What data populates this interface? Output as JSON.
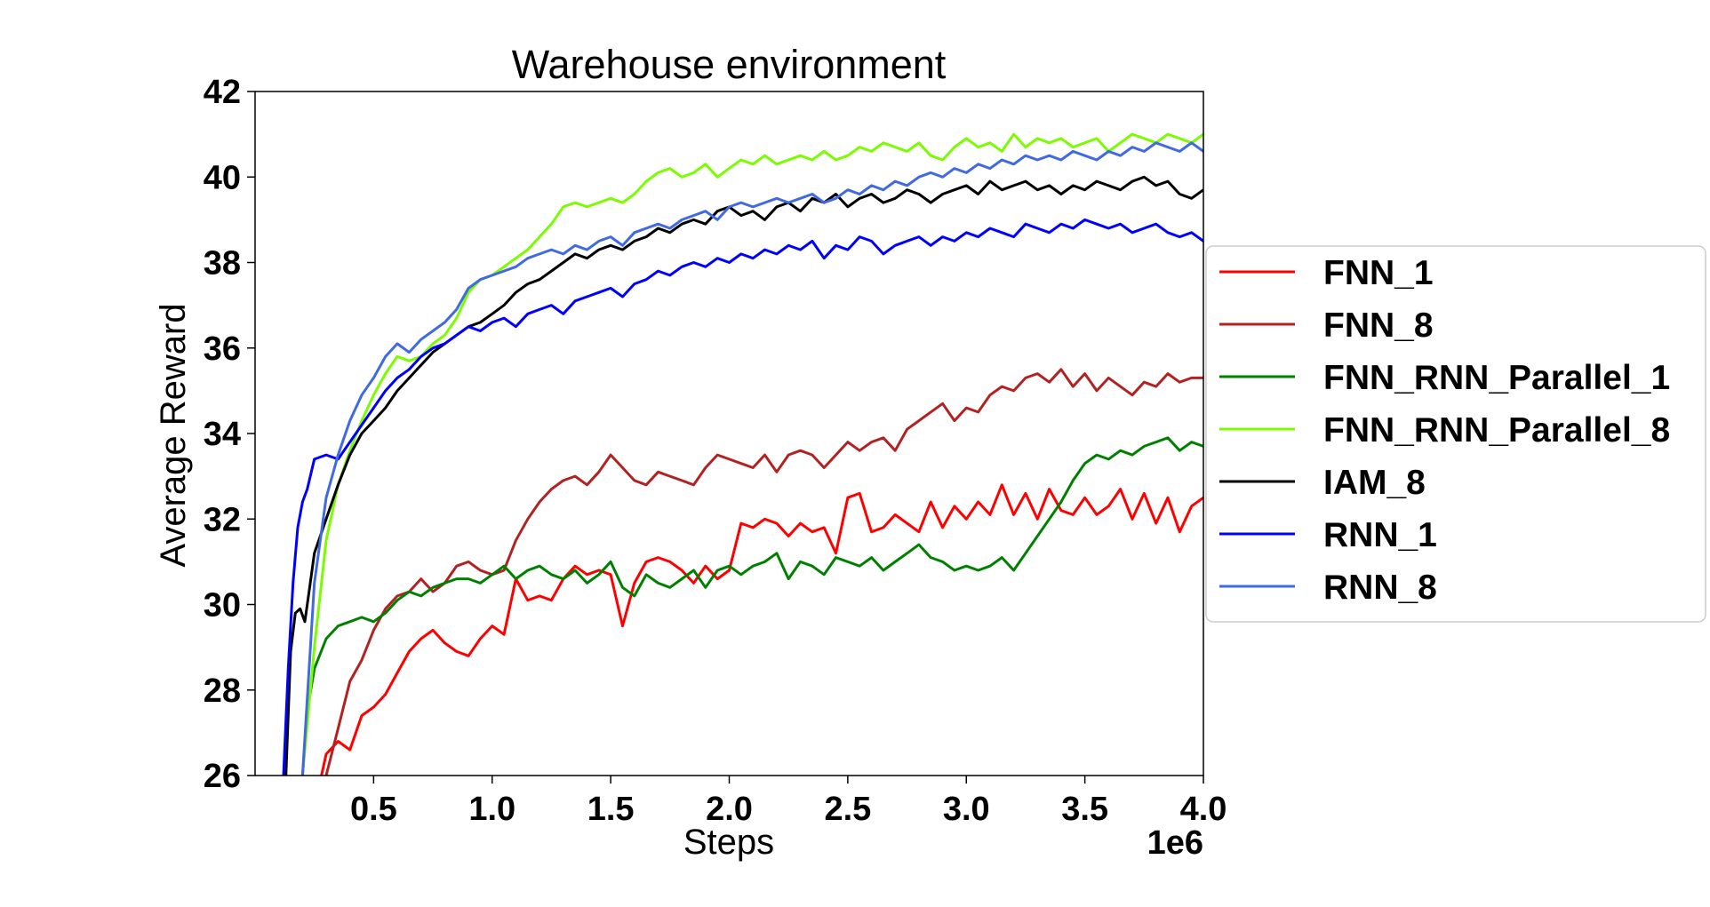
{
  "chart_data": {
    "type": "line",
    "title": "Warehouse environment",
    "xlabel": "Steps",
    "ylabel": "Average Reward",
    "x_offset_label": "1e6",
    "xlim": [
      0.0,
      4.0
    ],
    "ylim": [
      26,
      42
    ],
    "xticks": [
      0.5,
      1.0,
      1.5,
      2.0,
      2.5,
      3.0,
      3.5,
      4.0
    ],
    "xtick_labels": [
      "0.5",
      "1.0",
      "1.5",
      "2.0",
      "2.5",
      "3.0",
      "3.5",
      "4.0"
    ],
    "yticks": [
      26,
      28,
      30,
      32,
      34,
      36,
      38,
      40,
      42
    ],
    "ytick_labels": [
      "26",
      "28",
      "30",
      "32",
      "34",
      "36",
      "38",
      "40",
      "42"
    ],
    "grid": false,
    "legend_position": "outside-right",
    "series": [
      {
        "name": "FNN_1",
        "color": "#ff0000",
        "x": [
          0.28,
          0.3,
          0.35,
          0.4,
          0.45,
          0.5,
          0.55,
          0.6,
          0.65,
          0.7,
          0.75,
          0.8,
          0.85,
          0.9,
          0.95,
          1.0,
          1.05,
          1.1,
          1.15,
          1.2,
          1.25,
          1.3,
          1.35,
          1.4,
          1.45,
          1.5,
          1.55,
          1.6,
          1.65,
          1.7,
          1.75,
          1.8,
          1.85,
          1.9,
          1.95,
          2.0,
          2.05,
          2.1,
          2.15,
          2.2,
          2.25,
          2.3,
          2.35,
          2.4,
          2.45,
          2.5,
          2.55,
          2.6,
          2.65,
          2.7,
          2.75,
          2.8,
          2.85,
          2.9,
          2.95,
          3.0,
          3.05,
          3.1,
          3.15,
          3.2,
          3.25,
          3.3,
          3.35,
          3.4,
          3.45,
          3.5,
          3.55,
          3.6,
          3.65,
          3.7,
          3.75,
          3.8,
          3.85,
          3.9,
          3.95,
          4.0
        ],
        "y": [
          26.0,
          26.5,
          26.8,
          26.6,
          27.4,
          27.6,
          27.9,
          28.4,
          28.9,
          29.2,
          29.4,
          29.1,
          28.9,
          28.8,
          29.2,
          29.5,
          29.3,
          30.6,
          30.1,
          30.2,
          30.1,
          30.6,
          30.9,
          30.7,
          30.8,
          30.7,
          29.5,
          30.5,
          31.0,
          31.1,
          31.0,
          30.8,
          30.5,
          30.9,
          30.6,
          30.8,
          31.9,
          31.8,
          32.0,
          31.9,
          31.6,
          31.9,
          31.7,
          31.8,
          31.2,
          32.5,
          32.6,
          31.7,
          31.8,
          32.1,
          31.9,
          31.7,
          32.4,
          31.8,
          32.3,
          32.0,
          32.4,
          32.1,
          32.8,
          32.1,
          32.6,
          32.0,
          32.7,
          32.2,
          32.1,
          32.5,
          32.1,
          32.3,
          32.7,
          32.0,
          32.6,
          31.9,
          32.5,
          31.7,
          32.3,
          32.5
        ]
      },
      {
        "name": "FNN_8",
        "color": "#b22222",
        "x": [
          0.3,
          0.35,
          0.4,
          0.45,
          0.5,
          0.55,
          0.6,
          0.65,
          0.7,
          0.75,
          0.8,
          0.85,
          0.9,
          0.95,
          1.0,
          1.05,
          1.1,
          1.15,
          1.2,
          1.25,
          1.3,
          1.35,
          1.4,
          1.45,
          1.5,
          1.55,
          1.6,
          1.65,
          1.7,
          1.75,
          1.8,
          1.85,
          1.9,
          1.95,
          2.0,
          2.05,
          2.1,
          2.15,
          2.2,
          2.25,
          2.3,
          2.35,
          2.4,
          2.45,
          2.5,
          2.55,
          2.6,
          2.65,
          2.7,
          2.75,
          2.8,
          2.85,
          2.9,
          2.95,
          3.0,
          3.05,
          3.1,
          3.15,
          3.2,
          3.25,
          3.3,
          3.35,
          3.4,
          3.45,
          3.5,
          3.55,
          3.6,
          3.65,
          3.7,
          3.75,
          3.8,
          3.85,
          3.9,
          3.95,
          4.0
        ],
        "y": [
          26.0,
          27.1,
          28.2,
          28.7,
          29.4,
          29.9,
          30.2,
          30.3,
          30.6,
          30.3,
          30.5,
          30.9,
          31.0,
          30.8,
          30.7,
          30.8,
          31.5,
          32.0,
          32.4,
          32.7,
          32.9,
          33.0,
          32.8,
          33.1,
          33.5,
          33.2,
          32.9,
          32.8,
          33.1,
          33.0,
          32.9,
          32.8,
          33.2,
          33.5,
          33.4,
          33.3,
          33.2,
          33.5,
          33.1,
          33.5,
          33.6,
          33.5,
          33.2,
          33.5,
          33.8,
          33.6,
          33.8,
          33.9,
          33.6,
          34.1,
          34.3,
          34.5,
          34.7,
          34.3,
          34.6,
          34.5,
          34.9,
          35.1,
          35.0,
          35.3,
          35.4,
          35.2,
          35.5,
          35.1,
          35.4,
          35.0,
          35.3,
          35.1,
          34.9,
          35.2,
          35.1,
          35.4,
          35.2,
          35.3,
          35.3
        ]
      },
      {
        "name": "FNN_RNN_Parallel_1",
        "color": "#008000",
        "x": [
          0.2,
          0.22,
          0.25,
          0.3,
          0.35,
          0.4,
          0.45,
          0.5,
          0.55,
          0.6,
          0.65,
          0.7,
          0.75,
          0.8,
          0.85,
          0.9,
          0.95,
          1.0,
          1.05,
          1.1,
          1.15,
          1.2,
          1.25,
          1.3,
          1.35,
          1.4,
          1.45,
          1.5,
          1.55,
          1.6,
          1.65,
          1.7,
          1.75,
          1.8,
          1.85,
          1.9,
          1.95,
          2.0,
          2.05,
          2.1,
          2.15,
          2.2,
          2.25,
          2.3,
          2.35,
          2.4,
          2.45,
          2.5,
          2.55,
          2.6,
          2.65,
          2.7,
          2.75,
          2.8,
          2.85,
          2.9,
          2.95,
          3.0,
          3.05,
          3.1,
          3.15,
          3.2,
          3.25,
          3.3,
          3.35,
          3.4,
          3.45,
          3.5,
          3.55,
          3.6,
          3.65,
          3.7,
          3.75,
          3.8,
          3.85,
          3.9,
          3.95,
          4.0
        ],
        "y": [
          26.0,
          27.5,
          28.5,
          29.2,
          29.5,
          29.6,
          29.7,
          29.6,
          29.8,
          30.1,
          30.3,
          30.2,
          30.4,
          30.5,
          30.6,
          30.6,
          30.5,
          30.7,
          30.9,
          30.6,
          30.8,
          30.9,
          30.7,
          30.6,
          30.8,
          30.5,
          30.7,
          31.0,
          30.4,
          30.2,
          30.7,
          30.5,
          30.4,
          30.6,
          30.8,
          30.4,
          30.8,
          30.9,
          30.7,
          30.9,
          31.0,
          31.2,
          30.6,
          31.0,
          30.9,
          30.7,
          31.1,
          31.0,
          30.9,
          31.1,
          30.8,
          31.0,
          31.2,
          31.4,
          31.1,
          31.0,
          30.8,
          30.9,
          30.8,
          30.9,
          31.1,
          30.8,
          31.2,
          31.6,
          32.0,
          32.4,
          32.9,
          33.3,
          33.5,
          33.4,
          33.6,
          33.5,
          33.7,
          33.8,
          33.9,
          33.6,
          33.8,
          33.7
        ]
      },
      {
        "name": "FNN_RNN_Parallel_8",
        "color": "#7cfc00",
        "x": [
          0.2,
          0.25,
          0.3,
          0.35,
          0.4,
          0.45,
          0.5,
          0.55,
          0.6,
          0.65,
          0.7,
          0.75,
          0.8,
          0.85,
          0.9,
          0.95,
          1.0,
          1.05,
          1.1,
          1.15,
          1.2,
          1.25,
          1.3,
          1.35,
          1.4,
          1.45,
          1.5,
          1.55,
          1.6,
          1.65,
          1.7,
          1.75,
          1.8,
          1.85,
          1.9,
          1.95,
          2.0,
          2.05,
          2.1,
          2.15,
          2.2,
          2.25,
          2.3,
          2.35,
          2.4,
          2.45,
          2.5,
          2.55,
          2.6,
          2.65,
          2.7,
          2.75,
          2.8,
          2.85,
          2.9,
          2.95,
          3.0,
          3.05,
          3.1,
          3.15,
          3.2,
          3.25,
          3.3,
          3.35,
          3.4,
          3.45,
          3.5,
          3.55,
          3.6,
          3.65,
          3.7,
          3.75,
          3.8,
          3.85,
          3.9,
          3.95,
          4.0
        ],
        "y": [
          26.0,
          29.0,
          31.5,
          32.8,
          33.6,
          34.3,
          34.9,
          35.4,
          35.8,
          35.7,
          35.8,
          36.1,
          36.3,
          36.7,
          37.3,
          37.6,
          37.7,
          37.9,
          38.1,
          38.3,
          38.6,
          38.9,
          39.3,
          39.4,
          39.3,
          39.4,
          39.5,
          39.4,
          39.6,
          39.9,
          40.1,
          40.2,
          40.0,
          40.1,
          40.3,
          40.0,
          40.2,
          40.4,
          40.3,
          40.5,
          40.3,
          40.4,
          40.5,
          40.4,
          40.6,
          40.4,
          40.5,
          40.7,
          40.6,
          40.8,
          40.7,
          40.6,
          40.8,
          40.5,
          40.4,
          40.7,
          40.9,
          40.7,
          40.8,
          40.6,
          41.0,
          40.7,
          40.9,
          40.8,
          40.9,
          40.7,
          40.8,
          40.9,
          40.6,
          40.8,
          41.0,
          40.9,
          40.8,
          41.0,
          40.9,
          40.8,
          41.0
        ]
      },
      {
        "name": "IAM_8",
        "color": "#000000",
        "x": [
          0.13,
          0.15,
          0.17,
          0.19,
          0.21,
          0.23,
          0.25,
          0.3,
          0.35,
          0.4,
          0.45,
          0.5,
          0.55,
          0.6,
          0.65,
          0.7,
          0.75,
          0.8,
          0.85,
          0.9,
          0.95,
          1.0,
          1.05,
          1.1,
          1.15,
          1.2,
          1.25,
          1.3,
          1.35,
          1.4,
          1.45,
          1.5,
          1.55,
          1.6,
          1.65,
          1.7,
          1.75,
          1.8,
          1.85,
          1.9,
          1.95,
          2.0,
          2.05,
          2.1,
          2.15,
          2.2,
          2.25,
          2.3,
          2.35,
          2.4,
          2.45,
          2.5,
          2.55,
          2.6,
          2.65,
          2.7,
          2.75,
          2.8,
          2.85,
          2.9,
          2.95,
          3.0,
          3.05,
          3.1,
          3.15,
          3.2,
          3.25,
          3.3,
          3.35,
          3.4,
          3.45,
          3.5,
          3.55,
          3.6,
          3.65,
          3.7,
          3.75,
          3.8,
          3.85,
          3.9,
          3.95,
          4.0
        ],
        "y": [
          26.0,
          28.9,
          29.8,
          29.9,
          29.6,
          30.4,
          31.2,
          32.0,
          32.8,
          33.5,
          34.0,
          34.3,
          34.6,
          35.0,
          35.3,
          35.6,
          35.9,
          36.1,
          36.3,
          36.5,
          36.6,
          36.8,
          37.0,
          37.3,
          37.5,
          37.6,
          37.8,
          38.0,
          38.2,
          38.1,
          38.3,
          38.4,
          38.3,
          38.5,
          38.6,
          38.8,
          38.7,
          38.9,
          39.0,
          38.9,
          39.2,
          39.3,
          39.1,
          39.2,
          39.0,
          39.3,
          39.4,
          39.2,
          39.5,
          39.4,
          39.6,
          39.3,
          39.5,
          39.6,
          39.4,
          39.5,
          39.7,
          39.6,
          39.4,
          39.6,
          39.7,
          39.8,
          39.6,
          39.9,
          39.7,
          39.8,
          39.9,
          39.7,
          39.8,
          39.6,
          39.8,
          39.7,
          39.9,
          39.8,
          39.7,
          39.9,
          40.0,
          39.8,
          39.9,
          39.6,
          39.5,
          39.7
        ]
      },
      {
        "name": "RNN_1",
        "color": "#0000ff",
        "x": [
          0.12,
          0.14,
          0.16,
          0.18,
          0.2,
          0.22,
          0.25,
          0.3,
          0.35,
          0.4,
          0.45,
          0.5,
          0.55,
          0.6,
          0.65,
          0.7,
          0.75,
          0.8,
          0.85,
          0.9,
          0.95,
          1.0,
          1.05,
          1.1,
          1.15,
          1.2,
          1.25,
          1.3,
          1.35,
          1.4,
          1.45,
          1.5,
          1.55,
          1.6,
          1.65,
          1.7,
          1.75,
          1.8,
          1.85,
          1.9,
          1.95,
          2.0,
          2.05,
          2.1,
          2.15,
          2.2,
          2.25,
          2.3,
          2.35,
          2.4,
          2.45,
          2.5,
          2.55,
          2.6,
          2.65,
          2.7,
          2.75,
          2.8,
          2.85,
          2.9,
          2.95,
          3.0,
          3.05,
          3.1,
          3.15,
          3.2,
          3.25,
          3.3,
          3.35,
          3.4,
          3.45,
          3.5,
          3.55,
          3.6,
          3.65,
          3.7,
          3.75,
          3.8,
          3.85,
          3.9,
          3.95,
          4.0
        ],
        "y": [
          26.0,
          28.5,
          30.5,
          31.8,
          32.4,
          32.7,
          33.4,
          33.5,
          33.4,
          33.8,
          34.2,
          34.6,
          35.0,
          35.3,
          35.5,
          35.8,
          36.0,
          36.1,
          36.3,
          36.5,
          36.4,
          36.6,
          36.7,
          36.5,
          36.8,
          36.9,
          37.0,
          36.8,
          37.1,
          37.2,
          37.3,
          37.4,
          37.2,
          37.5,
          37.6,
          37.8,
          37.7,
          37.9,
          38.0,
          37.9,
          38.1,
          38.0,
          38.2,
          38.1,
          38.3,
          38.2,
          38.4,
          38.3,
          38.5,
          38.1,
          38.4,
          38.3,
          38.6,
          38.5,
          38.2,
          38.4,
          38.5,
          38.6,
          38.4,
          38.6,
          38.5,
          38.7,
          38.6,
          38.8,
          38.7,
          38.6,
          38.9,
          38.8,
          38.7,
          38.9,
          38.8,
          39.0,
          38.9,
          38.8,
          38.9,
          38.7,
          38.8,
          38.9,
          38.7,
          38.6,
          38.7,
          38.5
        ]
      },
      {
        "name": "RNN_8",
        "color": "#4169e1",
        "x": [
          0.2,
          0.25,
          0.3,
          0.35,
          0.4,
          0.45,
          0.5,
          0.55,
          0.6,
          0.65,
          0.7,
          0.75,
          0.8,
          0.85,
          0.9,
          0.95,
          1.0,
          1.05,
          1.1,
          1.15,
          1.2,
          1.25,
          1.3,
          1.35,
          1.4,
          1.45,
          1.5,
          1.55,
          1.6,
          1.65,
          1.7,
          1.75,
          1.8,
          1.85,
          1.9,
          1.95,
          2.0,
          2.05,
          2.1,
          2.15,
          2.2,
          2.25,
          2.3,
          2.35,
          2.4,
          2.45,
          2.5,
          2.55,
          2.6,
          2.65,
          2.7,
          2.75,
          2.8,
          2.85,
          2.9,
          2.95,
          3.0,
          3.05,
          3.1,
          3.15,
          3.2,
          3.25,
          3.3,
          3.35,
          3.4,
          3.45,
          3.5,
          3.55,
          3.6,
          3.65,
          3.7,
          3.75,
          3.8,
          3.85,
          3.9,
          3.95,
          4.0
        ],
        "y": [
          26.0,
          30.5,
          32.5,
          33.5,
          34.3,
          34.9,
          35.3,
          35.8,
          36.1,
          35.9,
          36.2,
          36.4,
          36.6,
          36.9,
          37.4,
          37.6,
          37.7,
          37.8,
          37.9,
          38.1,
          38.2,
          38.3,
          38.2,
          38.4,
          38.3,
          38.5,
          38.6,
          38.4,
          38.7,
          38.8,
          38.9,
          38.8,
          39.0,
          39.1,
          39.2,
          39.0,
          39.3,
          39.4,
          39.3,
          39.4,
          39.5,
          39.4,
          39.5,
          39.6,
          39.4,
          39.5,
          39.7,
          39.6,
          39.8,
          39.7,
          39.9,
          39.8,
          40.0,
          40.1,
          40.0,
          40.2,
          40.1,
          40.3,
          40.2,
          40.4,
          40.3,
          40.5,
          40.4,
          40.5,
          40.4,
          40.6,
          40.5,
          40.4,
          40.6,
          40.5,
          40.7,
          40.6,
          40.8,
          40.7,
          40.6,
          40.8,
          40.6
        ]
      }
    ]
  }
}
